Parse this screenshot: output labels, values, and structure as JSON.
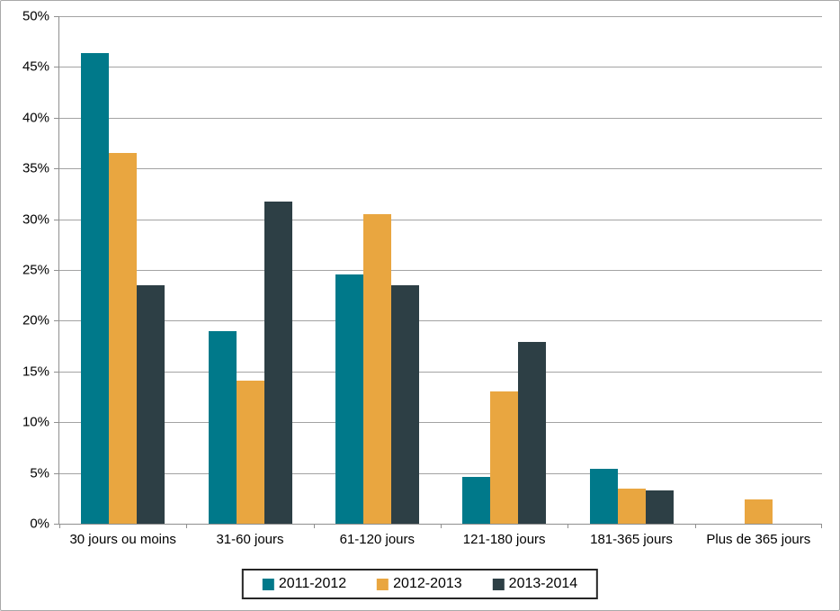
{
  "chart_data": {
    "type": "bar",
    "title": "",
    "xlabel": "",
    "ylabel": "",
    "categories": [
      "30 jours ou moins",
      "31-60 jours",
      "61-120 jours",
      "121-180 jours",
      "181-365 jours",
      "Plus de 365 jours"
    ],
    "series": [
      {
        "name": "2011-2012",
        "color": "#00798A",
        "values": [
          46.4,
          19.0,
          24.6,
          4.6,
          5.4,
          0
        ]
      },
      {
        "name": "2012-2013",
        "color": "#E9A640",
        "values": [
          36.5,
          14.1,
          30.5,
          13.0,
          3.5,
          2.4
        ]
      },
      {
        "name": "2013-2014",
        "color": "#2D3F45",
        "values": [
          23.5,
          31.7,
          23.5,
          17.9,
          3.3,
          0
        ]
      }
    ],
    "ylim": [
      0,
      50
    ],
    "ytick_step": 5,
    "ytick_labels": [
      "0%",
      "5%",
      "10%",
      "15%",
      "20%",
      "25%",
      "30%",
      "35%",
      "40%",
      "45%",
      "50%"
    ],
    "grid": true,
    "legend_position": "bottom"
  },
  "colors": {
    "gridline": "#A3A3A3",
    "axis": "#8F8F8F",
    "outer_border": "#A9A9A9",
    "legend_border": "#262626",
    "background": "#FFFFFF",
    "text": "#000000"
  }
}
